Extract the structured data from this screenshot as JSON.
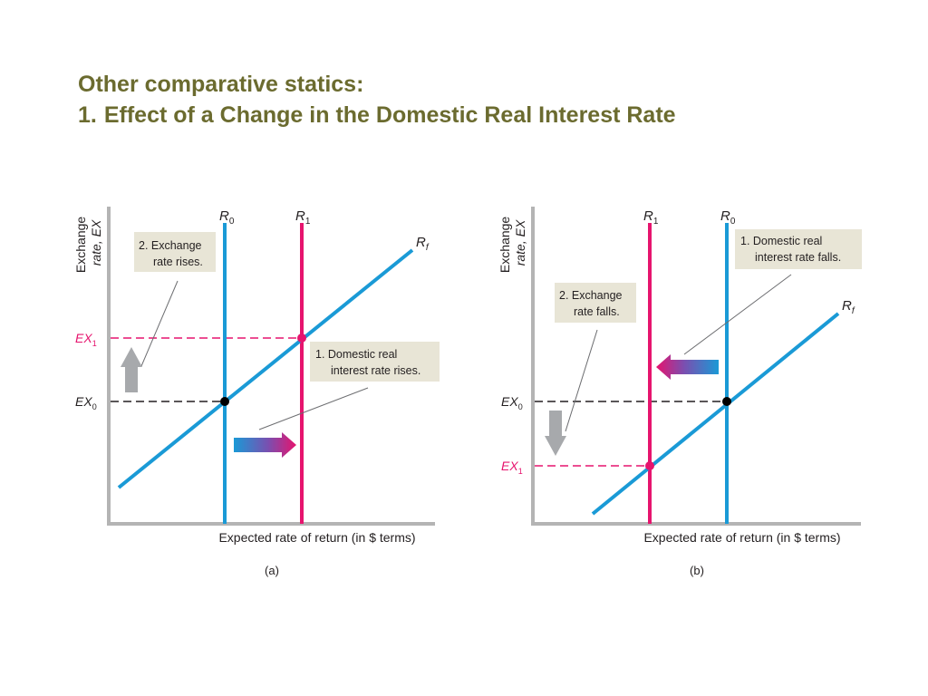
{
  "title": {
    "line1": "Other comparative statics:",
    "number": "1.",
    "line2": "Effect of a Change in the Domestic Real Interest Rate"
  },
  "colors": {
    "title": "#6b6b2f",
    "blue": "#1a9ad6",
    "magenta": "#e6146e",
    "axis": "#b4b4b4",
    "callout_bg": "#e8e5d6",
    "arrow_gray": "#a7a9ac"
  },
  "panel_a": {
    "y_axis_label_line1": "Exchange",
    "y_axis_label_line2": "rate, EX",
    "x_axis_label": "Expected rate of return (in $ terms)",
    "caption": "(a)",
    "r0_label": "R",
    "r0_sub": "0",
    "r1_label": "R",
    "r1_sub": "1",
    "rf_label": "R",
    "rf_sub": "f",
    "ex0_label": "EX",
    "ex0_sub": "0",
    "ex1_label": "EX",
    "ex1_sub": "1",
    "callout_1_line1": "2. Exchange",
    "callout_1_line2": "rate rises.",
    "callout_2_line1": "1. Domestic real",
    "callout_2_line2": "interest rate rises."
  },
  "panel_b": {
    "y_axis_label_line1": "Exchange",
    "y_axis_label_line2": "rate, EX",
    "x_axis_label": "Expected rate of return (in $ terms)",
    "caption": "(b)",
    "r0_label": "R",
    "r0_sub": "0",
    "r1_label": "R",
    "r1_sub": "1",
    "rf_label": "R",
    "rf_sub": "f",
    "ex0_label": "EX",
    "ex0_sub": "0",
    "ex1_label": "EX",
    "ex1_sub": "1",
    "callout_1_line1": "2. Exchange",
    "callout_1_line2": "rate falls.",
    "callout_2_line1": "1. Domestic real",
    "callout_2_line2": "interest rate falls."
  }
}
